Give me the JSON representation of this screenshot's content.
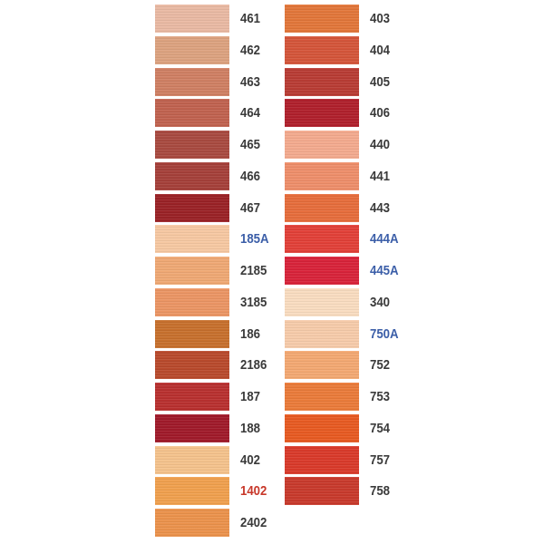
{
  "text_colors": {
    "normal": "#3a3a3a",
    "blue": "#3b5ea8",
    "red": "#c8382a"
  },
  "left_column": [
    {
      "code": "461",
      "swatch": "#e9b9a3",
      "label_color": "normal"
    },
    {
      "code": "462",
      "swatch": "#dca27f",
      "label_color": "normal"
    },
    {
      "code": "463",
      "swatch": "#cf7f63",
      "label_color": "normal"
    },
    {
      "code": "464",
      "swatch": "#c0624f",
      "label_color": "normal"
    },
    {
      "code": "465",
      "swatch": "#a84a40",
      "label_color": "normal"
    },
    {
      "code": "466",
      "swatch": "#a5403a",
      "label_color": "normal"
    },
    {
      "code": "467",
      "swatch": "#9a2226",
      "label_color": "normal"
    },
    {
      "code": "185A",
      "swatch": "#f6c8a2",
      "label_color": "blue"
    },
    {
      "code": "2185",
      "swatch": "#efa874",
      "label_color": "normal"
    },
    {
      "code": "3185",
      "swatch": "#eb9564",
      "label_color": "normal"
    },
    {
      "code": "186",
      "swatch": "#c7702d",
      "label_color": "normal"
    },
    {
      "code": "2186",
      "swatch": "#b84a2c",
      "label_color": "normal"
    },
    {
      "code": "187",
      "swatch": "#b8302f",
      "label_color": "normal"
    },
    {
      "code": "188",
      "swatch": "#a01a2a",
      "label_color": "normal"
    },
    {
      "code": "402",
      "swatch": "#f4c28c",
      "label_color": "normal"
    },
    {
      "code": "1402",
      "swatch": "#f0a04e",
      "label_color": "red"
    },
    {
      "code": "2402",
      "swatch": "#eb924c",
      "label_color": "normal"
    }
  ],
  "right_column": [
    {
      "code": "403",
      "swatch": "#e2763a",
      "label_color": "normal"
    },
    {
      "code": "404",
      "swatch": "#d4553a",
      "label_color": "normal"
    },
    {
      "code": "405",
      "swatch": "#b83c34",
      "label_color": "normal"
    },
    {
      "code": "406",
      "swatch": "#b0202c",
      "label_color": "normal"
    },
    {
      "code": "440",
      "swatch": "#f3aa8e",
      "label_color": "normal"
    },
    {
      "code": "441",
      "swatch": "#ee8e6a",
      "label_color": "normal"
    },
    {
      "code": "443",
      "swatch": "#e66d3c",
      "label_color": "normal"
    },
    {
      "code": "444A",
      "swatch": "#e24038",
      "label_color": "blue"
    },
    {
      "code": "445A",
      "swatch": "#d8233a",
      "label_color": "blue"
    },
    {
      "code": "340",
      "swatch": "#f9dcc0",
      "label_color": "normal"
    },
    {
      "code": "750A",
      "swatch": "#f6cbaa",
      "label_color": "blue"
    },
    {
      "code": "752",
      "swatch": "#f3a872",
      "label_color": "normal"
    },
    {
      "code": "753",
      "swatch": "#ea7b3a",
      "label_color": "normal"
    },
    {
      "code": "754",
      "swatch": "#e75a22",
      "label_color": "normal"
    },
    {
      "code": "757",
      "swatch": "#d93a2a",
      "label_color": "normal"
    },
    {
      "code": "758",
      "swatch": "#c83a2c",
      "label_color": "normal"
    }
  ]
}
